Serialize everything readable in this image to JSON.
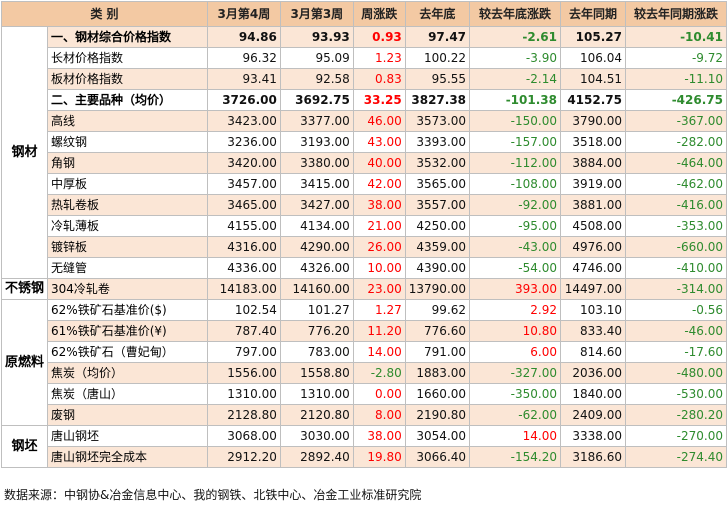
{
  "headers": [
    "类 别",
    "",
    "3月第4周",
    "3月第3周",
    "周涨跌",
    "去年底",
    "较去年底涨跌",
    "去年同期",
    "较去年同期涨跌"
  ],
  "groups": [
    {
      "category": "钢材",
      "rows": [
        {
          "name": "一、钢材综合价格指数",
          "v": [
            "94.86",
            "93.93",
            "0.93",
            "97.47",
            "-2.61",
            "105.27",
            "-10.41"
          ],
          "bold": true
        },
        {
          "name": "长材价格指数",
          "v": [
            "96.32",
            "95.09",
            "1.23",
            "100.22",
            "-3.90",
            "106.04",
            "-9.72"
          ]
        },
        {
          "name": "板材价格指数",
          "v": [
            "93.41",
            "92.58",
            "0.83",
            "95.55",
            "-2.14",
            "104.51",
            "-11.10"
          ]
        },
        {
          "name": "二、主要品种（均价）",
          "v": [
            "3726.00",
            "3692.75",
            "33.25",
            "3827.38",
            "-101.38",
            "4152.75",
            "-426.75"
          ],
          "bold": true
        },
        {
          "name": "高线",
          "v": [
            "3423.00",
            "3377.00",
            "46.00",
            "3573.00",
            "-150.00",
            "3790.00",
            "-367.00"
          ]
        },
        {
          "name": "螺纹钢",
          "v": [
            "3236.00",
            "3193.00",
            "43.00",
            "3393.00",
            "-157.00",
            "3518.00",
            "-282.00"
          ]
        },
        {
          "name": "角钢",
          "v": [
            "3420.00",
            "3380.00",
            "40.00",
            "3532.00",
            "-112.00",
            "3884.00",
            "-464.00"
          ]
        },
        {
          "name": "中厚板",
          "v": [
            "3457.00",
            "3415.00",
            "42.00",
            "3565.00",
            "-108.00",
            "3919.00",
            "-462.00"
          ]
        },
        {
          "name": "热轧卷板",
          "v": [
            "3465.00",
            "3427.00",
            "38.00",
            "3557.00",
            "-92.00",
            "3881.00",
            "-416.00"
          ]
        },
        {
          "name": "冷轧薄板",
          "v": [
            "4155.00",
            "4134.00",
            "21.00",
            "4250.00",
            "-95.00",
            "4508.00",
            "-353.00"
          ]
        },
        {
          "name": "镀锌板",
          "v": [
            "4316.00",
            "4290.00",
            "26.00",
            "4359.00",
            "-43.00",
            "4976.00",
            "-660.00"
          ]
        },
        {
          "name": "无缝管",
          "v": [
            "4336.00",
            "4326.00",
            "10.00",
            "4390.00",
            "-54.00",
            "4746.00",
            "-410.00"
          ]
        }
      ]
    },
    {
      "category": "不锈钢",
      "rows": [
        {
          "name": "304冷轧卷",
          "v": [
            "14183.00",
            "14160.00",
            "23.00",
            "13790.00",
            "393.00",
            "14497.00",
            "-314.00"
          ]
        }
      ]
    },
    {
      "category": "原燃料",
      "rows": [
        {
          "name": "62%铁矿石基准价($)",
          "v": [
            "102.54",
            "101.27",
            "1.27",
            "99.62",
            "2.92",
            "103.10",
            "-0.56"
          ]
        },
        {
          "name": "61%铁矿石基准价(¥)",
          "v": [
            "787.40",
            "776.20",
            "11.20",
            "776.60",
            "10.80",
            "833.40",
            "-46.00"
          ]
        },
        {
          "name": "62%铁矿石（曹妃甸）",
          "v": [
            "797.00",
            "783.00",
            "14.00",
            "791.00",
            "6.00",
            "814.60",
            "-17.60"
          ]
        },
        {
          "name": "焦炭（均价）",
          "v": [
            "1556.00",
            "1558.80",
            "-2.80",
            "1883.00",
            "-327.00",
            "2036.00",
            "-480.00"
          ]
        },
        {
          "name": "焦炭（唐山）",
          "v": [
            "1310.00",
            "1310.00",
            "0.00",
            "1660.00",
            "-350.00",
            "1840.00",
            "-530.00"
          ]
        },
        {
          "name": "废钢",
          "v": [
            "2128.80",
            "2120.80",
            "8.00",
            "2190.80",
            "-62.00",
            "2409.00",
            "-280.20"
          ]
        }
      ]
    },
    {
      "category": "钢坯",
      "rows": [
        {
          "name": "唐山钢坯",
          "v": [
            "3068.00",
            "3030.00",
            "38.00",
            "3054.00",
            "14.00",
            "3338.00",
            "-270.00"
          ]
        },
        {
          "name": "唐山钢坯完全成本",
          "v": [
            "2912.20",
            "2892.40",
            "19.80",
            "3066.40",
            "-154.20",
            "3186.60",
            "-274.40"
          ]
        }
      ]
    }
  ],
  "footer": "数据来源：中钢协&冶金信息中心、我的钢铁、北铁中心、冶金工业标准研究院",
  "colors": {
    "header_bg": "#f3c9a3",
    "row_bg": "#fbe6d6",
    "positive": "#ff0000",
    "negative": "#2e8b2e"
  }
}
